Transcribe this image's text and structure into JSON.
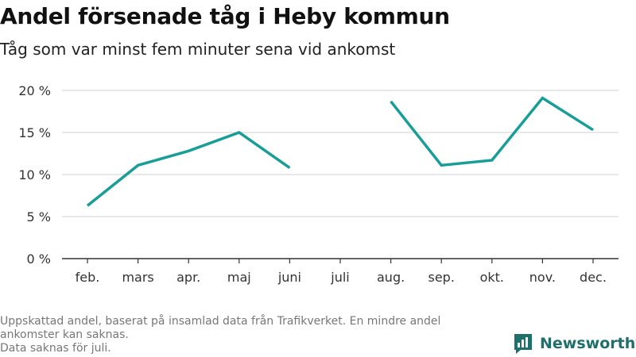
{
  "title": "Andel försenade tåg i Heby kommun",
  "subtitle": "Tåg som var minst fem minuter sena vid ankomst",
  "footnote": [
    "Uppskattad andel, baserat på insamlad data från Trafikverket. En mindre andel",
    "ankomster kan saknas.",
    "Data saknas för juli."
  ],
  "brand": {
    "name": "Newsworthy",
    "icon": "bar-chart-logo-icon"
  },
  "colors": {
    "line": "#189e96",
    "grid": "#d9d9d9",
    "axis": "#333333",
    "brand": "#1f6f6a"
  },
  "chart_data": {
    "type": "line",
    "categories": [
      "feb.",
      "mars",
      "apr.",
      "maj",
      "juni",
      "juli",
      "aug.",
      "sep.",
      "okt.",
      "nov.",
      "dec."
    ],
    "series": [
      {
        "values": [
          6.3,
          11.1,
          12.8,
          15.0,
          10.8,
          null,
          18.7,
          11.1,
          11.7,
          19.1,
          15.3
        ]
      }
    ],
    "ylim": [
      0,
      20
    ],
    "yticks": [
      0,
      5,
      10,
      15,
      20
    ],
    "ytick_labels": [
      "0 %",
      "5 %",
      "10 %",
      "15 %",
      "20 %"
    ],
    "xlabel": "",
    "ylabel": "",
    "grid": true
  }
}
